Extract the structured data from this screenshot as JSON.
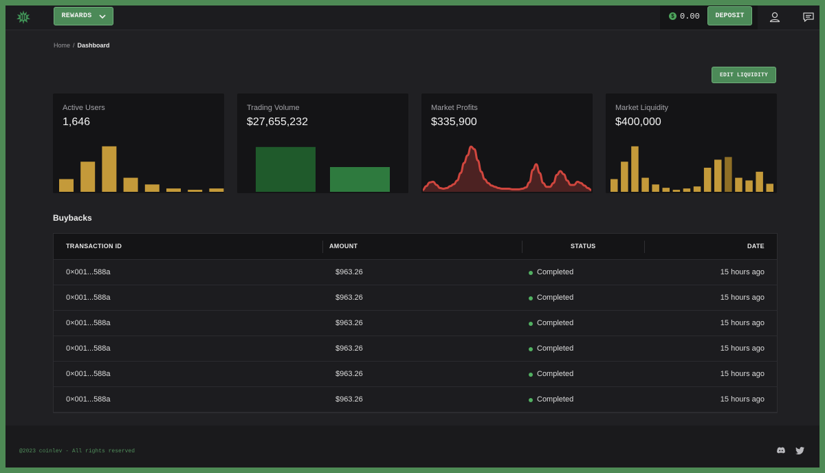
{
  "header": {
    "rewards_label": "REWARDS",
    "balance": "0.00",
    "coin_symbol": "$",
    "deposit_label": "DEPOSIT"
  },
  "breadcrumb": {
    "home": "Home",
    "separator": "/",
    "current": "Dashboard"
  },
  "edit_liquidity_label": "EDIT LIQUIDITY",
  "cards": [
    {
      "label": "Active Users",
      "value": "1,646"
    },
    {
      "label": "Trading Volume",
      "value": "$27,655,232"
    },
    {
      "label": "Market Profits",
      "value": "$335,900"
    },
    {
      "label": "Market Liquidity",
      "value": "$400,000"
    }
  ],
  "section_title": "Buybacks",
  "table": {
    "columns": [
      "TRANSACTION ID",
      "AMOUNT",
      "STATUS",
      "DATE"
    ],
    "rows": [
      {
        "id": "0×001...588a",
        "amount": "$963.26",
        "status": "Completed",
        "date": "15 hours ago"
      },
      {
        "id": "0×001...588a",
        "amount": "$963.26",
        "status": "Completed",
        "date": "15 hours ago"
      },
      {
        "id": "0×001...588a",
        "amount": "$963.26",
        "status": "Completed",
        "date": "15 hours ago"
      },
      {
        "id": "0×001...588a",
        "amount": "$963.26",
        "status": "Completed",
        "date": "15 hours ago"
      },
      {
        "id": "0×001...588a",
        "amount": "$963.26",
        "status": "Completed",
        "date": "15 hours ago"
      },
      {
        "id": "0×001...588a",
        "amount": "$963.26",
        "status": "Completed",
        "date": "15 hours ago"
      }
    ]
  },
  "footer": {
    "copyright": "@2023 coinlev - All rights reserved"
  },
  "icons": {
    "logo": "coinlev-logo-icon",
    "rewards_chevron": "chevron-down-icon",
    "user": "user-icon",
    "chat": "chat-icon",
    "discord": "discord-icon",
    "twitter": "twitter-icon"
  },
  "colors": {
    "accent_green": "#4c8a58",
    "gold": "#c49a3a",
    "dark_green": "#1f5a2b",
    "mid_green": "#2e7a3e",
    "profit_red": "#d0463e",
    "status_green": "#52b062"
  },
  "chart_data": [
    {
      "type": "bar",
      "title": "",
      "categories": [
        "1",
        "2",
        "3",
        "4",
        "5",
        "6",
        "7",
        "8"
      ],
      "values": [
        19,
        45,
        68,
        21,
        11,
        5,
        3,
        5
      ],
      "ylim": [
        0,
        75
      ],
      "color": "#c49a3a"
    },
    {
      "type": "bar",
      "title": "",
      "categories": [
        "1",
        "2"
      ],
      "values": [
        67,
        37
      ],
      "ylim": [
        0,
        75
      ],
      "colors": [
        "#1f5a2b",
        "#2e7a3e"
      ]
    },
    {
      "type": "area",
      "title": "",
      "x": [
        0,
        1,
        2,
        3,
        4,
        5,
        6,
        7,
        8,
        9,
        10,
        11,
        12,
        13,
        14,
        15,
        16,
        17,
        18,
        19,
        20,
        21,
        22,
        23,
        24,
        25,
        26,
        27,
        28,
        29,
        30,
        31,
        32,
        33,
        34,
        35,
        36,
        37,
        38,
        39,
        40,
        41,
        42,
        43,
        44,
        45,
        46,
        47,
        48,
        49
      ],
      "values": [
        3,
        9,
        15,
        16,
        11,
        6,
        5,
        6,
        9,
        12,
        18,
        30,
        46,
        58,
        72,
        68,
        50,
        32,
        20,
        14,
        10,
        8,
        6,
        5,
        5,
        5,
        4,
        4,
        4,
        5,
        7,
        15,
        35,
        44,
        30,
        14,
        8,
        8,
        14,
        27,
        33,
        28,
        18,
        11,
        11,
        16,
        14,
        10,
        6,
        3
      ],
      "ylim": [
        0,
        80
      ],
      "color": "#d0463e"
    },
    {
      "type": "bar",
      "title": "",
      "categories": [
        "1",
        "2",
        "3",
        "4",
        "5",
        "6",
        "7",
        "8",
        "9",
        "10",
        "11",
        "12",
        "13",
        "14",
        "15",
        "16",
        "17"
      ],
      "values": [
        19,
        45,
        68,
        21,
        11,
        6,
        3,
        5,
        8,
        36,
        48,
        52,
        21,
        17,
        30,
        12,
        0
      ],
      "highlight_index": 11,
      "ylim": [
        0,
        75
      ],
      "color": "#c49a3a"
    }
  ]
}
